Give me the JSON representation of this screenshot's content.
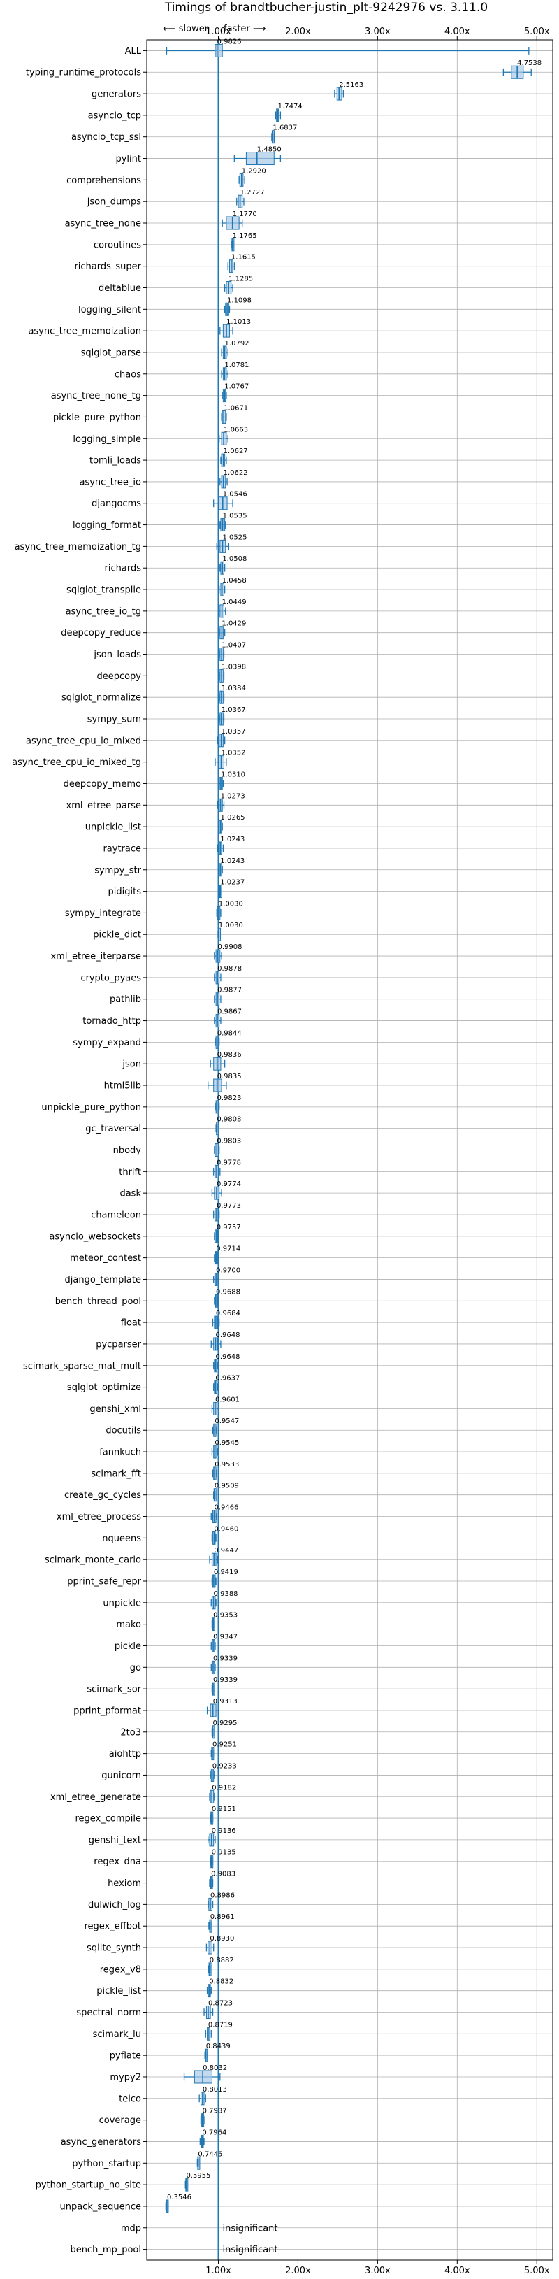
{
  "chart_data": {
    "type": "box-horizontal",
    "title": "Timings of brandtbucher-justin_plt-9242976 vs. 3.11.0",
    "direction_labels": {
      "slower": "⟵ slower",
      "faster": "faster ⟶"
    },
    "x_ticks": [
      "1.00x",
      "2.00x",
      "3.00x",
      "4.00x",
      "5.00x"
    ],
    "x_tick_values": [
      1,
      2,
      3,
      4,
      5
    ],
    "xlim": [
      0.1,
      5.2
    ],
    "grid": true,
    "colors": {
      "box": "#1f77b4",
      "fill": "#a9c9e6",
      "ref_line": "#1f77b4",
      "grid": "#b0b0b0"
    },
    "insignificant_label": "insignificant",
    "benchmarks": [
      {
        "name": "ALL",
        "value": 0.9826,
        "label": "0.9826",
        "low": 0.35,
        "high": 4.9,
        "q1": 0.96,
        "q3": 1.05
      },
      {
        "name": "typing_runtime_protocols",
        "value": 4.7538,
        "label": "4.7538",
        "low": 4.58,
        "high": 4.93,
        "q1": 4.68,
        "q3": 4.83
      },
      {
        "name": "generators",
        "value": 2.5163,
        "label": "2.5163",
        "low": 2.46,
        "high": 2.57,
        "q1": 2.49,
        "q3": 2.55
      },
      {
        "name": "asyncio_tcp",
        "value": 1.7474,
        "label": "1.7474",
        "low": 1.72,
        "high": 1.78,
        "q1": 1.73,
        "q3": 1.76
      },
      {
        "name": "asyncio_tcp_ssl",
        "value": 1.6837,
        "label": "1.6837",
        "low": 1.67,
        "high": 1.7,
        "q1": 1.675,
        "q3": 1.69
      },
      {
        "name": "pylint",
        "value": 1.485,
        "label": "1.4850",
        "low": 1.2,
        "high": 1.78,
        "q1": 1.35,
        "q3": 1.7
      },
      {
        "name": "comprehensions",
        "value": 1.292,
        "label": "1.2920",
        "low": 1.26,
        "high": 1.33,
        "q1": 1.27,
        "q3": 1.31
      },
      {
        "name": "json_dumps",
        "value": 1.2727,
        "label": "1.2727",
        "low": 1.23,
        "high": 1.32,
        "q1": 1.25,
        "q3": 1.3
      },
      {
        "name": "async_tree_none",
        "value": 1.177,
        "label": "1.1770",
        "low": 1.05,
        "high": 1.3,
        "q1": 1.1,
        "q3": 1.26
      },
      {
        "name": "coroutines",
        "value": 1.1765,
        "label": "1.1765",
        "low": 1.16,
        "high": 1.19,
        "q1": 1.17,
        "q3": 1.185
      },
      {
        "name": "richards_super",
        "value": 1.1615,
        "label": "1.1615",
        "low": 1.12,
        "high": 1.2,
        "q1": 1.14,
        "q3": 1.18
      },
      {
        "name": "deltablue",
        "value": 1.1285,
        "label": "1.1285",
        "low": 1.08,
        "high": 1.18,
        "q1": 1.1,
        "q3": 1.16
      },
      {
        "name": "logging_silent",
        "value": 1.1098,
        "label": "1.1098",
        "low": 1.08,
        "high": 1.14,
        "q1": 1.09,
        "q3": 1.13
      },
      {
        "name": "async_tree_memoization",
        "value": 1.1013,
        "label": "1.1013",
        "low": 1.02,
        "high": 1.18,
        "q1": 1.06,
        "q3": 1.14
      },
      {
        "name": "sqlglot_parse",
        "value": 1.0792,
        "label": "1.0792",
        "low": 1.04,
        "high": 1.12,
        "q1": 1.06,
        "q3": 1.1
      },
      {
        "name": "chaos",
        "value": 1.0781,
        "label": "1.0781",
        "low": 1.04,
        "high": 1.12,
        "q1": 1.06,
        "q3": 1.1
      },
      {
        "name": "async_tree_none_tg",
        "value": 1.0767,
        "label": "1.0767",
        "low": 1.05,
        "high": 1.1,
        "q1": 1.06,
        "q3": 1.09
      },
      {
        "name": "pickle_pure_python",
        "value": 1.0671,
        "label": "1.0671",
        "low": 1.04,
        "high": 1.1,
        "q1": 1.05,
        "q3": 1.09
      },
      {
        "name": "logging_simple",
        "value": 1.0663,
        "label": "1.0663",
        "low": 1.01,
        "high": 1.12,
        "q1": 1.04,
        "q3": 1.1
      },
      {
        "name": "tomli_loads",
        "value": 1.0627,
        "label": "1.0627",
        "low": 1.03,
        "high": 1.1,
        "q1": 1.04,
        "q3": 1.08
      },
      {
        "name": "async_tree_io",
        "value": 1.0622,
        "label": "1.0622",
        "low": 1.02,
        "high": 1.11,
        "q1": 1.04,
        "q3": 1.09
      },
      {
        "name": "djangocms",
        "value": 1.0546,
        "label": "1.0546",
        "low": 0.94,
        "high": 1.18,
        "q1": 1.0,
        "q3": 1.11
      },
      {
        "name": "logging_format",
        "value": 1.0535,
        "label": "1.0535",
        "low": 1.02,
        "high": 1.09,
        "q1": 1.03,
        "q3": 1.08
      },
      {
        "name": "async_tree_memoization_tg",
        "value": 1.0525,
        "label": "1.0525",
        "low": 0.98,
        "high": 1.13,
        "q1": 1.02,
        "q3": 1.09
      },
      {
        "name": "richards",
        "value": 1.0508,
        "label": "1.0508",
        "low": 1.02,
        "high": 1.08,
        "q1": 1.03,
        "q3": 1.07
      },
      {
        "name": "sqlglot_transpile",
        "value": 1.0458,
        "label": "1.0458",
        "low": 1.01,
        "high": 1.08,
        "q1": 1.03,
        "q3": 1.07
      },
      {
        "name": "async_tree_io_tg",
        "value": 1.0449,
        "label": "1.0449",
        "low": 1.0,
        "high": 1.09,
        "q1": 1.02,
        "q3": 1.07
      },
      {
        "name": "deepcopy_reduce",
        "value": 1.0429,
        "label": "1.0429",
        "low": 1.01,
        "high": 1.08,
        "q1": 1.02,
        "q3": 1.06
      },
      {
        "name": "json_loads",
        "value": 1.0407,
        "label": "1.0407",
        "low": 1.01,
        "high": 1.07,
        "q1": 1.02,
        "q3": 1.06
      },
      {
        "name": "deepcopy",
        "value": 1.0398,
        "label": "1.0398",
        "low": 1.01,
        "high": 1.07,
        "q1": 1.02,
        "q3": 1.06
      },
      {
        "name": "sqlglot_normalize",
        "value": 1.0384,
        "label": "1.0384",
        "low": 1.01,
        "high": 1.07,
        "q1": 1.02,
        "q3": 1.06
      },
      {
        "name": "sympy_sum",
        "value": 1.0367,
        "label": "1.0367",
        "low": 1.01,
        "high": 1.07,
        "q1": 1.02,
        "q3": 1.06
      },
      {
        "name": "async_tree_cpu_io_mixed",
        "value": 1.0357,
        "label": "1.0357",
        "low": 0.99,
        "high": 1.08,
        "q1": 1.01,
        "q3": 1.06
      },
      {
        "name": "async_tree_cpu_io_mixed_tg",
        "value": 1.0352,
        "label": "1.0352",
        "low": 0.96,
        "high": 1.1,
        "q1": 1.0,
        "q3": 1.07
      },
      {
        "name": "deepcopy_memo",
        "value": 1.031,
        "label": "1.0310",
        "low": 1.0,
        "high": 1.06,
        "q1": 1.02,
        "q3": 1.05
      },
      {
        "name": "xml_etree_parse",
        "value": 1.0273,
        "label": "1.0273",
        "low": 0.99,
        "high": 1.07,
        "q1": 1.01,
        "q3": 1.05
      },
      {
        "name": "unpickle_list",
        "value": 1.0265,
        "label": "1.0265",
        "low": 1.0,
        "high": 1.05,
        "q1": 1.01,
        "q3": 1.04
      },
      {
        "name": "raytrace",
        "value": 1.0243,
        "label": "1.0243",
        "low": 0.99,
        "high": 1.06,
        "q1": 1.01,
        "q3": 1.04
      },
      {
        "name": "sympy_str",
        "value": 1.0243,
        "label": "1.0243",
        "low": 1.0,
        "high": 1.05,
        "q1": 1.01,
        "q3": 1.04
      },
      {
        "name": "pidigits",
        "value": 1.0237,
        "label": "1.0237",
        "low": 1.01,
        "high": 1.04,
        "q1": 1.015,
        "q3": 1.03
      },
      {
        "name": "sympy_integrate",
        "value": 1.003,
        "label": "1.0030",
        "low": 0.98,
        "high": 1.03,
        "q1": 0.99,
        "q3": 1.02
      },
      {
        "name": "pickle_dict",
        "value": 1.003,
        "label": "1.0030",
        "low": 0.995,
        "high": 1.01,
        "q1": 1.0,
        "q3": 1.008
      },
      {
        "name": "xml_etree_iterparse",
        "value": 0.9908,
        "label": "0.9908",
        "low": 0.95,
        "high": 1.04,
        "q1": 0.97,
        "q3": 1.02
      },
      {
        "name": "crypto_pyaes",
        "value": 0.9878,
        "label": "0.9878",
        "low": 0.95,
        "high": 1.03,
        "q1": 0.97,
        "q3": 1.01
      },
      {
        "name": "pathlib",
        "value": 0.9877,
        "label": "0.9877",
        "low": 0.95,
        "high": 1.03,
        "q1": 0.97,
        "q3": 1.01
      },
      {
        "name": "tornado_http",
        "value": 0.9867,
        "label": "0.9867",
        "low": 0.95,
        "high": 1.03,
        "q1": 0.97,
        "q3": 1.01
      },
      {
        "name": "sympy_expand",
        "value": 0.9844,
        "label": "0.9844",
        "low": 0.96,
        "high": 1.01,
        "q1": 0.97,
        "q3": 1.0
      },
      {
        "name": "json",
        "value": 0.9836,
        "label": "0.9836",
        "low": 0.9,
        "high": 1.08,
        "q1": 0.94,
        "q3": 1.03
      },
      {
        "name": "html5lib",
        "value": 0.9835,
        "label": "0.9835",
        "low": 0.87,
        "high": 1.1,
        "q1": 0.94,
        "q3": 1.04
      },
      {
        "name": "unpickle_pure_python",
        "value": 0.9823,
        "label": "0.9823",
        "low": 0.96,
        "high": 1.01,
        "q1": 0.97,
        "q3": 1.0
      },
      {
        "name": "gc_traversal",
        "value": 0.9808,
        "label": "0.9808",
        "low": 0.97,
        "high": 0.99,
        "q1": 0.975,
        "q3": 0.988
      },
      {
        "name": "nbody",
        "value": 0.9803,
        "label": "0.9803",
        "low": 0.95,
        "high": 1.01,
        "q1": 0.96,
        "q3": 1.0
      },
      {
        "name": "thrift",
        "value": 0.9778,
        "label": "0.9778",
        "low": 0.94,
        "high": 1.02,
        "q1": 0.96,
        "q3": 1.0
      },
      {
        "name": "dask",
        "value": 0.9774,
        "label": "0.9774",
        "low": 0.92,
        "high": 1.04,
        "q1": 0.95,
        "q3": 1.01
      },
      {
        "name": "chameleon",
        "value": 0.9773,
        "label": "0.9773",
        "low": 0.94,
        "high": 1.01,
        "q1": 0.96,
        "q3": 0.995
      },
      {
        "name": "asyncio_websockets",
        "value": 0.9757,
        "label": "0.9757",
        "low": 0.95,
        "high": 1.0,
        "q1": 0.96,
        "q3": 0.99
      },
      {
        "name": "meteor_contest",
        "value": 0.9714,
        "label": "0.9714",
        "low": 0.95,
        "high": 1.0,
        "q1": 0.96,
        "q3": 0.985
      },
      {
        "name": "django_template",
        "value": 0.97,
        "label": "0.9700",
        "low": 0.94,
        "high": 1.0,
        "q1": 0.955,
        "q3": 0.985
      },
      {
        "name": "bench_thread_pool",
        "value": 0.9688,
        "label": "0.9688",
        "low": 0.95,
        "high": 0.99,
        "q1": 0.96,
        "q3": 0.98
      },
      {
        "name": "float",
        "value": 0.9684,
        "label": "0.9684",
        "low": 0.93,
        "high": 1.01,
        "q1": 0.95,
        "q3": 0.99
      },
      {
        "name": "pycparser",
        "value": 0.9648,
        "label": "0.9648",
        "low": 0.91,
        "high": 1.03,
        "q1": 0.94,
        "q3": 0.99
      },
      {
        "name": "scimark_sparse_mat_mult",
        "value": 0.9648,
        "label": "0.9648",
        "low": 0.94,
        "high": 0.99,
        "q1": 0.95,
        "q3": 0.98
      },
      {
        "name": "sqlglot_optimize",
        "value": 0.9637,
        "label": "0.9637",
        "low": 0.94,
        "high": 0.99,
        "q1": 0.95,
        "q3": 0.98
      },
      {
        "name": "genshi_xml",
        "value": 0.9601,
        "label": "0.9601",
        "low": 0.92,
        "high": 1.0,
        "q1": 0.94,
        "q3": 0.98
      },
      {
        "name": "docutils",
        "value": 0.9547,
        "label": "0.9547",
        "low": 0.93,
        "high": 0.98,
        "q1": 0.94,
        "q3": 0.97
      },
      {
        "name": "fannkuch",
        "value": 0.9545,
        "label": "0.9545",
        "low": 0.92,
        "high": 0.99,
        "q1": 0.94,
        "q3": 0.97
      },
      {
        "name": "scimark_fft",
        "value": 0.9533,
        "label": "0.9533",
        "low": 0.93,
        "high": 0.98,
        "q1": 0.94,
        "q3": 0.97
      },
      {
        "name": "create_gc_cycles",
        "value": 0.9509,
        "label": "0.9509",
        "low": 0.94,
        "high": 0.96,
        "q1": 0.945,
        "q3": 0.957
      },
      {
        "name": "xml_etree_process",
        "value": 0.9466,
        "label": "0.9466",
        "low": 0.91,
        "high": 0.98,
        "q1": 0.93,
        "q3": 0.97
      },
      {
        "name": "nqueens",
        "value": 0.946,
        "label": "0.9460",
        "low": 0.92,
        "high": 0.97,
        "q1": 0.93,
        "q3": 0.96
      },
      {
        "name": "scimark_monte_carlo",
        "value": 0.9447,
        "label": "0.9447",
        "low": 0.89,
        "high": 0.99,
        "q1": 0.92,
        "q3": 0.97
      },
      {
        "name": "pprint_safe_repr",
        "value": 0.9419,
        "label": "0.9419",
        "low": 0.92,
        "high": 0.97,
        "q1": 0.93,
        "q3": 0.96
      },
      {
        "name": "unpickle",
        "value": 0.9388,
        "label": "0.9388",
        "low": 0.91,
        "high": 0.97,
        "q1": 0.92,
        "q3": 0.96
      },
      {
        "name": "mako",
        "value": 0.9353,
        "label": "0.9353",
        "low": 0.92,
        "high": 0.95,
        "q1": 0.925,
        "q3": 0.945
      },
      {
        "name": "pickle",
        "value": 0.9347,
        "label": "0.9347",
        "low": 0.91,
        "high": 0.96,
        "q1": 0.92,
        "q3": 0.95
      },
      {
        "name": "go",
        "value": 0.9339,
        "label": "0.9339",
        "low": 0.91,
        "high": 0.96,
        "q1": 0.92,
        "q3": 0.95
      },
      {
        "name": "scimark_sor",
        "value": 0.9339,
        "label": "0.9339",
        "low": 0.92,
        "high": 0.95,
        "q1": 0.925,
        "q3": 0.945
      },
      {
        "name": "pprint_pformat",
        "value": 0.9313,
        "label": "0.9313",
        "low": 0.86,
        "high": 1.0,
        "q1": 0.9,
        "q3": 0.97
      },
      {
        "name": "2to3",
        "value": 0.9295,
        "label": "0.9295",
        "low": 0.92,
        "high": 0.94,
        "q1": 0.925,
        "q3": 0.935
      },
      {
        "name": "aiohttp",
        "value": 0.9251,
        "label": "0.9251",
        "low": 0.91,
        "high": 0.94,
        "q1": 0.915,
        "q3": 0.935
      },
      {
        "name": "gunicorn",
        "value": 0.9233,
        "label": "0.9233",
        "low": 0.9,
        "high": 0.95,
        "q1": 0.91,
        "q3": 0.94
      },
      {
        "name": "xml_etree_generate",
        "value": 0.9182,
        "label": "0.9182",
        "low": 0.89,
        "high": 0.95,
        "q1": 0.9,
        "q3": 0.94
      },
      {
        "name": "regex_compile",
        "value": 0.9151,
        "label": "0.9151",
        "low": 0.9,
        "high": 0.93,
        "q1": 0.905,
        "q3": 0.925
      },
      {
        "name": "genshi_text",
        "value": 0.9136,
        "label": "0.9136",
        "low": 0.87,
        "high": 0.96,
        "q1": 0.89,
        "q3": 0.94
      },
      {
        "name": "regex_dna",
        "value": 0.9135,
        "label": "0.9135",
        "low": 0.9,
        "high": 0.93,
        "q1": 0.905,
        "q3": 0.92
      },
      {
        "name": "hexiom",
        "value": 0.9083,
        "label": "0.9083",
        "low": 0.89,
        "high": 0.93,
        "q1": 0.9,
        "q3": 0.92
      },
      {
        "name": "dulwich_log",
        "value": 0.8986,
        "label": "0.8986",
        "low": 0.87,
        "high": 0.93,
        "q1": 0.88,
        "q3": 0.92
      },
      {
        "name": "regex_effbot",
        "value": 0.8961,
        "label": "0.8961",
        "low": 0.88,
        "high": 0.91,
        "q1": 0.89,
        "q3": 0.905
      },
      {
        "name": "sqlite_synth",
        "value": 0.893,
        "label": "0.8930",
        "low": 0.85,
        "high": 0.94,
        "q1": 0.87,
        "q3": 0.92
      },
      {
        "name": "regex_v8",
        "value": 0.8882,
        "label": "0.8882",
        "low": 0.875,
        "high": 0.9,
        "q1": 0.882,
        "q3": 0.895
      },
      {
        "name": "pickle_list",
        "value": 0.8832,
        "label": "0.8832",
        "low": 0.86,
        "high": 0.91,
        "q1": 0.87,
        "q3": 0.9
      },
      {
        "name": "spectral_norm",
        "value": 0.8723,
        "label": "0.8723",
        "low": 0.82,
        "high": 0.93,
        "q1": 0.85,
        "q3": 0.9
      },
      {
        "name": "scimark_lu",
        "value": 0.8719,
        "label": "0.8719",
        "low": 0.84,
        "high": 0.91,
        "q1": 0.86,
        "q3": 0.89
      },
      {
        "name": "pyflate",
        "value": 0.8439,
        "label": "0.8439",
        "low": 0.83,
        "high": 0.86,
        "q1": 0.835,
        "q3": 0.855
      },
      {
        "name": "mypy2",
        "value": 0.8032,
        "label": "0.8032",
        "low": 0.57,
        "high": 1.02,
        "q1": 0.7,
        "q3": 0.92
      },
      {
        "name": "telco",
        "value": 0.8013,
        "label": "0.8013",
        "low": 0.76,
        "high": 0.84,
        "q1": 0.78,
        "q3": 0.82
      },
      {
        "name": "coverage",
        "value": 0.7987,
        "label": "0.7987",
        "low": 0.78,
        "high": 0.82,
        "q1": 0.79,
        "q3": 0.81
      },
      {
        "name": "async_generators",
        "value": 0.7964,
        "label": "0.7964",
        "low": 0.77,
        "high": 0.82,
        "q1": 0.785,
        "q3": 0.81
      },
      {
        "name": "python_startup",
        "value": 0.7445,
        "label": "0.7445",
        "low": 0.735,
        "high": 0.755,
        "q1": 0.74,
        "q3": 0.75
      },
      {
        "name": "python_startup_no_site",
        "value": 0.5955,
        "label": "0.5955",
        "low": 0.585,
        "high": 0.605,
        "q1": 0.59,
        "q3": 0.6
      },
      {
        "name": "unpack_sequence",
        "value": 0.3546,
        "label": "0.3546",
        "low": 0.34,
        "high": 0.37,
        "q1": 0.345,
        "q3": 0.365
      },
      {
        "name": "mdp",
        "value": null,
        "label": "insignificant",
        "insignificant": true
      },
      {
        "name": "bench_mp_pool",
        "value": null,
        "label": "insignificant",
        "insignificant": true
      }
    ]
  }
}
